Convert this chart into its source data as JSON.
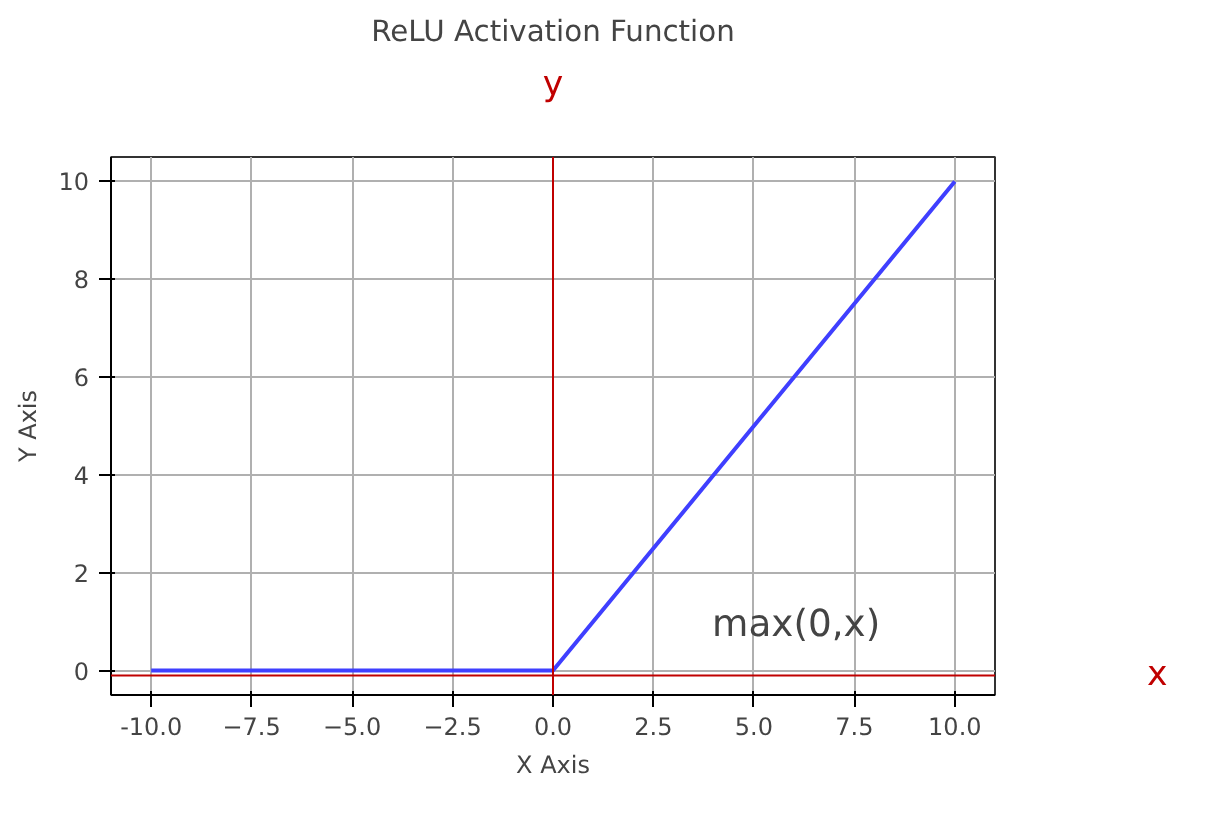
{
  "chart_data": {
    "type": "line",
    "title": "ReLU Activation Function",
    "xlabel": "X Axis",
    "ylabel": "Y Axis",
    "x": [
      -10,
      0,
      10
    ],
    "series": [
      {
        "color": "#3f3fff",
        "values": [
          0,
          0,
          10
        ]
      }
    ],
    "xlim": [
      -11,
      11
    ],
    "ylim": [
      -0.5,
      10.5
    ],
    "xticks": [
      {
        "value": -10,
        "label": "-10.0"
      },
      {
        "value": -7.5,
        "label": "−7.5"
      },
      {
        "value": -5,
        "label": "−5.0"
      },
      {
        "value": -2.5,
        "label": "−2.5"
      },
      {
        "value": 0,
        "label": "0.0"
      },
      {
        "value": 2.5,
        "label": "2.5"
      },
      {
        "value": 5,
        "label": "5.0"
      },
      {
        "value": 7.5,
        "label": "7.5"
      },
      {
        "value": 10,
        "label": "10.0"
      }
    ],
    "yticks": [
      0,
      2,
      4,
      6,
      8,
      10
    ],
    "grid": true,
    "marker": "none",
    "line_style": "solid",
    "annotations": [
      "max(0,x)"
    ],
    "ref_lines": [
      {
        "axis": "y",
        "value": -0.1,
        "label": "x",
        "color": "#c00000"
      },
      {
        "axis": "x",
        "value": 0,
        "label": "y",
        "color": "#c00000"
      }
    ]
  }
}
